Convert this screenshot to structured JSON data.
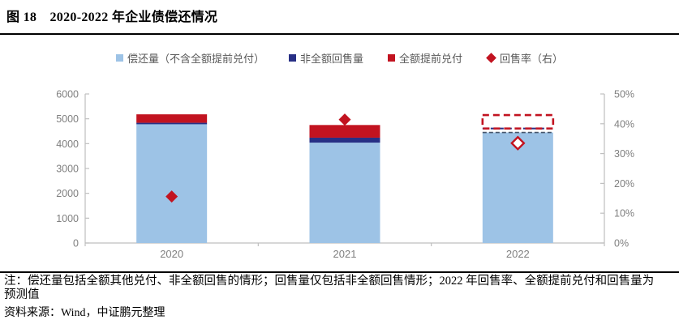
{
  "figure": {
    "title": "图 18　2020-2022 年企业债偿还情况"
  },
  "legend": [
    {
      "label": "偿还量（不含全额提前兑付）",
      "marker": "square",
      "color": "#9DC3E6"
    },
    {
      "label": "非全额回售量",
      "marker": "square",
      "color": "#272F85"
    },
    {
      "label": "全额提前兑付",
      "marker": "square",
      "color": "#C21320"
    },
    {
      "label": "回售率（右）",
      "marker": "diamond",
      "color": "#C21320"
    }
  ],
  "notes": {
    "note": "注：偿还量包括全额其他兑付、非全额回售的情形；回售量仅包括非全额回售情形；2022 年回售率、全额提前兑付和回售量为预测值",
    "source": "资料来源：Wind，中证鹏元整理"
  },
  "chart_data": {
    "type": "bar",
    "subtype": "stacked-with-right-axis-markers",
    "title": "图 18　2020-2022 年企业债偿还情况",
    "categories": [
      "2020",
      "2021",
      "2022"
    ],
    "series": [
      {
        "name": "偿还量（不含全额提前兑付）",
        "color": "#9DC3E6",
        "values": [
          4780,
          4040,
          4450
        ]
      },
      {
        "name": "非全额回售量",
        "color": "#272F85",
        "values": [
          60,
          200,
          160
        ]
      },
      {
        "name": "全额提前兑付",
        "color": "#C21320",
        "values": [
          340,
          510,
          540
        ]
      }
    ],
    "marker_series": {
      "name": "回售率（右）",
      "axis": "right",
      "marker": "diamond",
      "color": "#C21320",
      "values_pct": [
        15.6,
        41.4,
        33.5
      ],
      "hollow_index": 2
    },
    "forecast_index": 2,
    "left_axis": {
      "min": 0,
      "max": 6000,
      "step": 1000
    },
    "right_axis": {
      "min": 0,
      "max": 50,
      "step": 10,
      "suffix": "%"
    },
    "grid": false,
    "legend_position": "top",
    "styles": {
      "axis_line_color": "#BFBFBF",
      "tick_label_color": "#7F7F7F",
      "forecast_bar_top_color": "#44546A"
    }
  }
}
